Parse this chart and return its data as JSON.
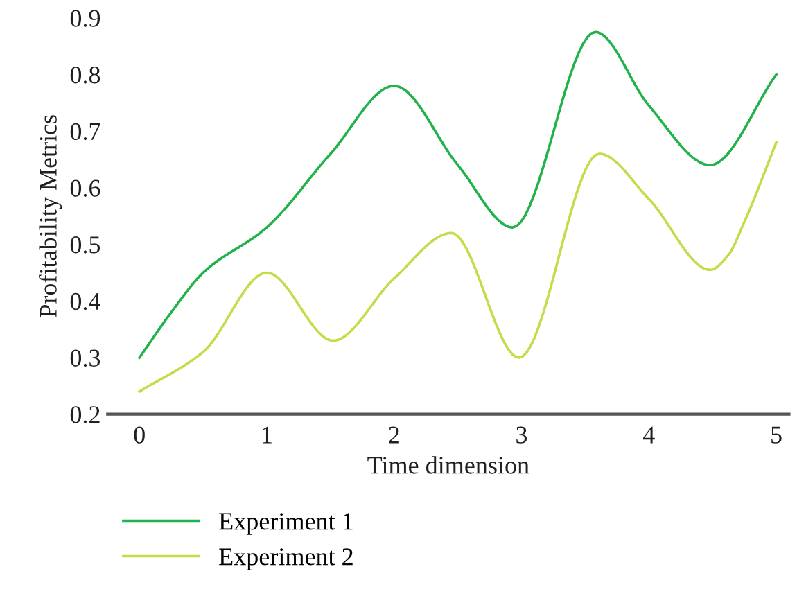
{
  "chart_data": {
    "type": "line",
    "xlabel": "Time dimension",
    "ylabel": "Profitability Metrics",
    "xlim": [
      -0.25,
      5.1
    ],
    "ylim": [
      0.2,
      0.9
    ],
    "xticks": [
      0,
      1,
      2,
      3,
      4,
      5
    ],
    "yticks": [
      0.2,
      0.3,
      0.4,
      0.5,
      0.6,
      0.7,
      0.8,
      0.9
    ],
    "grid": false,
    "legend": "bottom left",
    "marker": "none",
    "line_style": "solid",
    "series": [
      {
        "name": "Experiment 1",
        "color": "#22b24c",
        "x": [
          0,
          0.25,
          0.5,
          1,
          1.5,
          2,
          2.5,
          2.93,
          3.58,
          4,
          4.48,
          5
        ],
        "values": [
          0.3,
          0.38,
          0.45,
          0.53,
          0.66,
          0.78,
          0.64,
          0.53,
          0.875,
          0.745,
          0.64,
          0.8
        ]
      },
      {
        "name": "Experiment 2",
        "color": "#c5dc4a",
        "x": [
          0,
          0.5,
          1,
          1.52,
          2,
          2.45,
          2.98,
          3.61,
          4,
          4.48,
          4.62,
          4.75,
          5
        ],
        "values": [
          0.24,
          0.31,
          0.45,
          0.33,
          0.44,
          0.52,
          0.3,
          0.66,
          0.58,
          0.455,
          0.48,
          0.54,
          0.68
        ]
      }
    ]
  }
}
